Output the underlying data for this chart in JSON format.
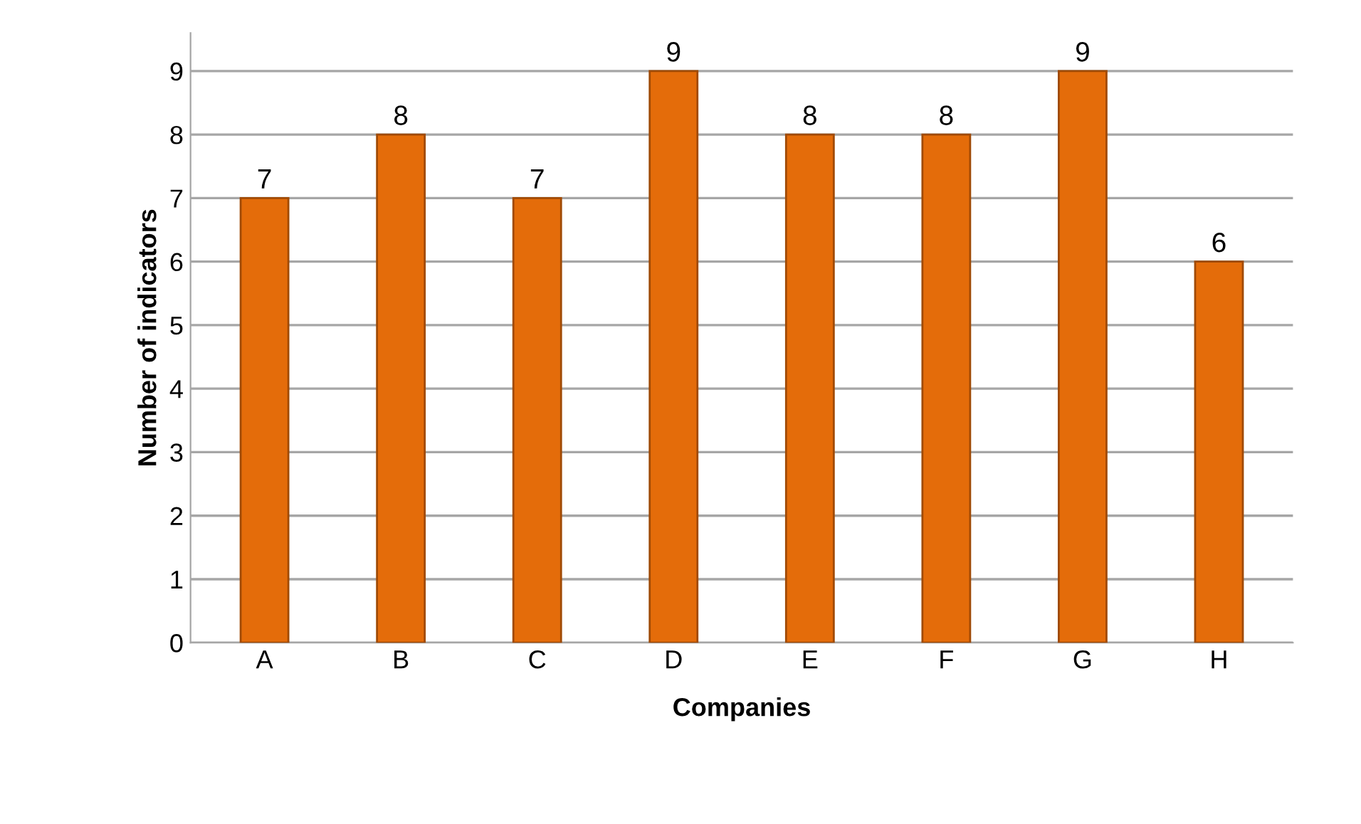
{
  "chart_data": {
    "type": "bar",
    "xlabel": "Companies",
    "ylabel": "Number of indicators",
    "categories": [
      "A",
      "B",
      "C",
      "D",
      "E",
      "F",
      "G",
      "H"
    ],
    "values": [
      7,
      8,
      7,
      9,
      8,
      8,
      9,
      6
    ],
    "color": "#e46c0a",
    "ylim": [
      0,
      9.6
    ],
    "yticks": [
      0,
      1,
      2,
      3,
      4,
      5,
      6,
      7,
      8,
      9
    ],
    "grid": "y",
    "data_labels": true
  }
}
